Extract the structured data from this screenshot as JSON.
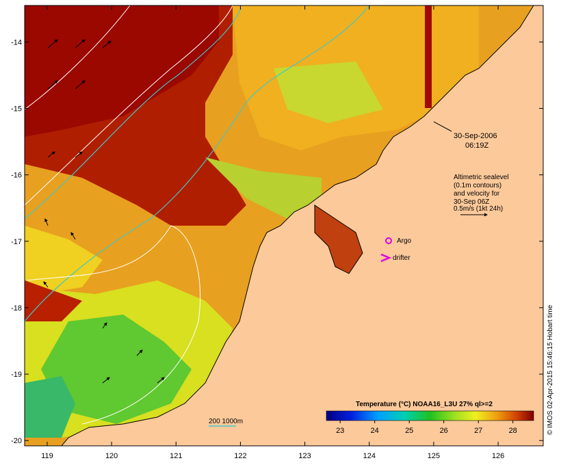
{
  "map": {
    "x_axis": {
      "ticks": [
        "119",
        "120",
        "121",
        "122",
        "123",
        "124",
        "125",
        "126"
      ],
      "range": [
        118.65,
        126.7
      ]
    },
    "y_axis": {
      "ticks": [
        "-14",
        "-15",
        "-16",
        "-17",
        "-18",
        "-19",
        "-20"
      ],
      "range": [
        -20.08,
        -13.45
      ]
    },
    "timestamp": {
      "date": "30-Sep-2006",
      "time": "06:19Z"
    },
    "altimetry_note": [
      "Altimetric sealevel",
      "(0.1m contours)",
      "and velocity for",
      "30-Sep 06Z",
      "0.5m/s (1kt 24h)"
    ],
    "legend": {
      "argo_label": "Argo",
      "drifter_label": "drifter",
      "isobath_label": "200  1000m",
      "argo_color": "#e000e0",
      "drifter_color": "#e000e0",
      "isobath_color": "#40c8c8"
    },
    "colorbar": {
      "title": "Temperature (°C) NOAA16_L3U 27% ql>=2",
      "ticks": [
        "23",
        "24",
        "25",
        "26",
        "27",
        "28"
      ],
      "range": [
        22.6,
        28.6
      ]
    },
    "credit": "© IMOS 02-Apr-2015 15:46:15 Hobart time",
    "colors": {
      "land": "#fcc99a",
      "hot": "#a00a00",
      "warm": "#e08a10",
      "mid": "#f2c020",
      "cool": "#40c040"
    }
  }
}
